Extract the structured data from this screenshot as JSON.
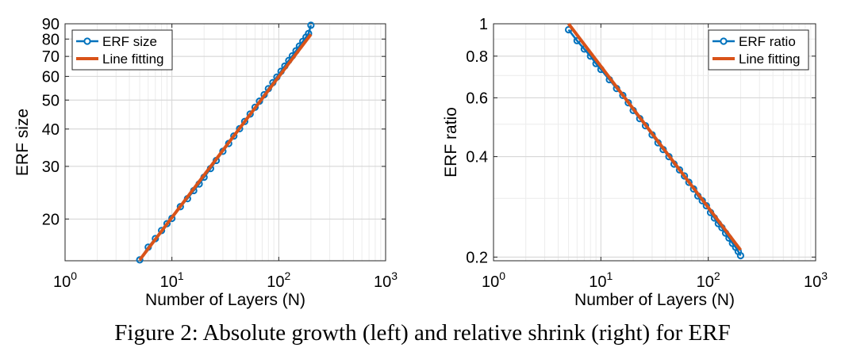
{
  "caption": "Figure 2: Absolute growth (left) and relative shrink (right) for ERF",
  "chart_data": [
    {
      "type": "line",
      "xlabel": "Number of Layers (N)",
      "ylabel": "ERF size",
      "xscale": "log",
      "yscale": "log",
      "xlim": [
        1,
        1000
      ],
      "ylim": [
        14.5,
        90
      ],
      "xticks": [
        1,
        10,
        100,
        1000
      ],
      "xtick_labels": [
        {
          "base": "10",
          "exp": "0"
        },
        {
          "base": "10",
          "exp": "1"
        },
        {
          "base": "10",
          "exp": "2"
        },
        {
          "base": "10",
          "exp": "3"
        }
      ],
      "yticks": [
        20,
        30,
        40,
        50,
        60,
        70,
        80,
        90
      ],
      "ytick_labels": [
        "20",
        "30",
        "40",
        "50",
        "60",
        "70",
        "80",
        "90"
      ],
      "grid": true,
      "legend_position": "top-left",
      "series": [
        {
          "name": "ERF size",
          "color": "#0072BD",
          "marker": "circle",
          "x": [
            5,
            6,
            7,
            8,
            9,
            10,
            12,
            14,
            16,
            18,
            20,
            23,
            26,
            30,
            34,
            38,
            43,
            48,
            54,
            60,
            66,
            73,
            80,
            88,
            96,
            105,
            114,
            124,
            134,
            145,
            156,
            168,
            180,
            190,
            200
          ],
          "y": [
            14.6,
            16.1,
            17.2,
            18.3,
            19.3,
            20.1,
            22.0,
            23.4,
            24.9,
            26.2,
            27.6,
            29.5,
            31.4,
            33.7,
            35.8,
            37.9,
            40.1,
            42.4,
            44.9,
            47.3,
            49.6,
            52.1,
            54.6,
            57.2,
            59.7,
            62.4,
            65.0,
            67.8,
            70.3,
            73.1,
            75.8,
            78.6,
            81.2,
            83.5,
            89.0
          ]
        },
        {
          "name": "Line fitting",
          "color": "#D95319",
          "marker": "none",
          "x": [
            5,
            200
          ],
          "y": [
            14.6,
            83.0
          ]
        }
      ]
    },
    {
      "type": "line",
      "xlabel": "Number of Layers (N)",
      "ylabel": "ERF ratio",
      "xscale": "log",
      "yscale": "log",
      "xlim": [
        1,
        1000
      ],
      "ylim": [
        0.195,
        1.0
      ],
      "xticks": [
        1,
        10,
        100,
        1000
      ],
      "xtick_labels": [
        {
          "base": "10",
          "exp": "0"
        },
        {
          "base": "10",
          "exp": "1"
        },
        {
          "base": "10",
          "exp": "2"
        },
        {
          "base": "10",
          "exp": "3"
        }
      ],
      "yticks": [
        0.2,
        0.4,
        0.6,
        0.8,
        1
      ],
      "ytick_labels": [
        "0.2",
        "0.4",
        "0.6",
        "0.8",
        "1"
      ],
      "grid": true,
      "legend_position": "top-right",
      "series": [
        {
          "name": "ERF ratio",
          "color": "#0072BD",
          "marker": "circle",
          "x": [
            5,
            6,
            7,
            8,
            9,
            10,
            12,
            14,
            16,
            18,
            20,
            23,
            26,
            30,
            34,
            38,
            43,
            48,
            54,
            60,
            66,
            73,
            80,
            88,
            96,
            105,
            114,
            124,
            134,
            145,
            156,
            168,
            180,
            190,
            200
          ],
          "y": [
            0.96,
            0.89,
            0.84,
            0.8,
            0.76,
            0.73,
            0.68,
            0.64,
            0.61,
            0.58,
            0.55,
            0.52,
            0.495,
            0.465,
            0.44,
            0.42,
            0.4,
            0.38,
            0.365,
            0.35,
            0.335,
            0.32,
            0.305,
            0.295,
            0.285,
            0.272,
            0.262,
            0.252,
            0.245,
            0.236,
            0.228,
            0.22,
            0.214,
            0.208,
            0.202
          ]
        },
        {
          "name": "Line fitting",
          "color": "#D95319",
          "marker": "none",
          "x": [
            5,
            200
          ],
          "y": [
            1.0,
            0.21
          ]
        }
      ]
    }
  ]
}
